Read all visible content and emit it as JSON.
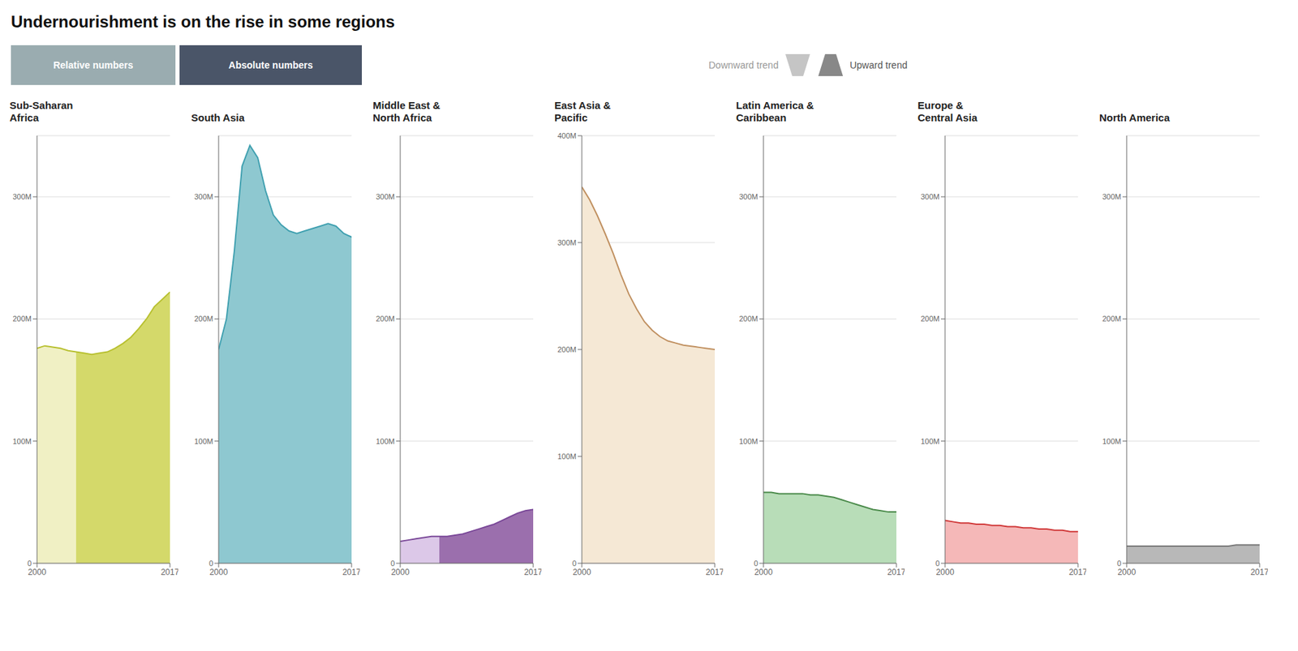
{
  "title": "Undernourishment is on the rise in some regions",
  "annotations": [
    {
      "text": "Relative numbers",
      "color": "#9aacb0"
    },
    {
      "text": "Absolute numbers",
      "color": "#4a5568"
    },
    {
      "text": "Downward trend",
      "color": "#c5c5c5"
    },
    {
      "text": "Upward trend",
      "color": "#888888"
    }
  ],
  "chart_data": [
    {
      "type": "area",
      "title": "Sub-Saharan\nAfrica",
      "x": [
        2000,
        2001,
        2002,
        2003,
        2004,
        2005,
        2006,
        2007,
        2008,
        2009,
        2010,
        2011,
        2012,
        2013,
        2014,
        2015,
        2016,
        2017
      ],
      "series": [
        {
          "type": "area",
          "color": "#f0f0c4",
          "values": [
            176,
            178,
            177,
            176,
            174,
            173,
            null,
            null,
            null,
            null,
            null,
            null,
            null,
            null,
            null,
            null,
            null,
            null
          ]
        },
        {
          "type": "area",
          "color": "#d4d96a",
          "values": [
            null,
            null,
            null,
            null,
            null,
            173,
            172,
            171,
            172,
            173,
            176,
            180,
            185,
            192,
            200,
            210,
            216,
            222
          ]
        },
        {
          "type": "line",
          "color": "#b8c030",
          "values": [
            176,
            178,
            177,
            176,
            174,
            173,
            172,
            171,
            172,
            173,
            176,
            180,
            185,
            192,
            200,
            210,
            216,
            222
          ]
        }
      ],
      "xlim": [
        2000,
        2017
      ],
      "xticks": [
        2000,
        2017
      ],
      "ylim": [
        0,
        350
      ],
      "yticks": [
        0,
        {
          "value": 100,
          "label": "100M"
        },
        {
          "value": 200,
          "label": "200M"
        },
        {
          "value": 300,
          "label": "300M"
        }
      ],
      "grid": true
    },
    {
      "type": "area",
      "title": "South Asia",
      "x": [
        2000,
        2001,
        2002,
        2003,
        2004,
        2005,
        2006,
        2007,
        2008,
        2009,
        2010,
        2011,
        2012,
        2013,
        2014,
        2015,
        2016,
        2017
      ],
      "series": [
        {
          "type": "area",
          "color": "#8ec8d0",
          "values": [
            175,
            200,
            255,
            325,
            342,
            332,
            305,
            285,
            277,
            272,
            270,
            272,
            274,
            276,
            278,
            276,
            270,
            267
          ]
        },
        {
          "type": "line",
          "color": "#40a0b0",
          "values": [
            175,
            200,
            255,
            325,
            342,
            332,
            305,
            285,
            277,
            272,
            270,
            272,
            274,
            276,
            278,
            276,
            270,
            267
          ]
        }
      ],
      "xlim": [
        2000,
        2017
      ],
      "xticks": [
        2000,
        2017
      ],
      "ylim": [
        0,
        350
      ],
      "yticks": [
        0,
        {
          "value": 100,
          "label": "100M"
        },
        {
          "value": 200,
          "label": "200M"
        },
        {
          "value": 300,
          "label": "300M"
        }
      ],
      "grid": true
    },
    {
      "type": "area",
      "title": "Middle East &\nNorth Africa",
      "x": [
        2000,
        2001,
        2002,
        2003,
        2004,
        2005,
        2006,
        2007,
        2008,
        2009,
        2010,
        2011,
        2012,
        2013,
        2014,
        2015,
        2016,
        2017
      ],
      "series": [
        {
          "type": "area",
          "color": "#dcc8e8",
          "values": [
            18,
            19,
            20,
            21,
            22,
            22,
            null,
            null,
            null,
            null,
            null,
            null,
            null,
            null,
            null,
            null,
            null,
            null
          ]
        },
        {
          "type": "area",
          "color": "#9b6fad",
          "values": [
            null,
            null,
            null,
            null,
            null,
            22,
            22,
            23,
            24,
            26,
            28,
            30,
            32,
            35,
            38,
            41,
            43,
            44
          ]
        },
        {
          "type": "line",
          "color": "#7a4898",
          "values": [
            18,
            19,
            20,
            21,
            22,
            22,
            22,
            23,
            24,
            26,
            28,
            30,
            32,
            35,
            38,
            41,
            43,
            44
          ]
        }
      ],
      "xlim": [
        2000,
        2017
      ],
      "xticks": [
        2000,
        2017
      ],
      "ylim": [
        0,
        350
      ],
      "yticks": [
        0,
        {
          "value": 100,
          "label": "100M"
        },
        {
          "value": 200,
          "label": "200M"
        },
        {
          "value": 300,
          "label": "300M"
        }
      ],
      "grid": true
    },
    {
      "type": "area",
      "title": "East Asia &\nPacific",
      "x": [
        2000,
        2001,
        2002,
        2003,
        2004,
        2005,
        2006,
        2007,
        2008,
        2009,
        2010,
        2011,
        2012,
        2013,
        2014,
        2015,
        2016,
        2017
      ],
      "series": [
        {
          "type": "area",
          "color": "#f5e8d5",
          "values": [
            352,
            340,
            325,
            308,
            290,
            270,
            252,
            238,
            226,
            218,
            212,
            208,
            206,
            204,
            203,
            202,
            201,
            200
          ]
        },
        {
          "type": "line",
          "color": "#c09060",
          "values": [
            352,
            340,
            325,
            308,
            290,
            270,
            252,
            238,
            226,
            218,
            212,
            208,
            206,
            204,
            203,
            202,
            201,
            200
          ]
        }
      ],
      "xlim": [
        2000,
        2017
      ],
      "xticks": [
        2000,
        2017
      ],
      "ylim": [
        0,
        400
      ],
      "yticks": [
        0,
        {
          "value": 100,
          "label": "100M"
        },
        {
          "value": 200,
          "label": "200M"
        },
        {
          "value": 300,
          "label": "300M"
        },
        {
          "value": 400,
          "label": "400M"
        }
      ],
      "grid": true
    },
    {
      "type": "area",
      "title": "Latin America &\nCaribbean",
      "x": [
        2000,
        2001,
        2002,
        2003,
        2004,
        2005,
        2006,
        2007,
        2008,
        2009,
        2010,
        2011,
        2012,
        2013,
        2014,
        2015,
        2016,
        2017
      ],
      "series": [
        {
          "type": "area",
          "color": "#b8ddb8",
          "values": [
            58,
            58,
            57,
            57,
            57,
            57,
            56,
            56,
            55,
            54,
            52,
            50,
            48,
            46,
            44,
            43,
            42,
            42
          ]
        },
        {
          "type": "line",
          "color": "#4a8a4a",
          "values": [
            58,
            58,
            57,
            57,
            57,
            57,
            56,
            56,
            55,
            54,
            52,
            50,
            48,
            46,
            44,
            43,
            42,
            42
          ]
        }
      ],
      "xlim": [
        2000,
        2017
      ],
      "xticks": [
        2000,
        2017
      ],
      "ylim": [
        0,
        350
      ],
      "yticks": [
        0,
        {
          "value": 100,
          "label": "100M"
        },
        {
          "value": 200,
          "label": "200M"
        },
        {
          "value": 300,
          "label": "300M"
        }
      ],
      "grid": true
    },
    {
      "type": "area",
      "title": "Europe &\nCentral Asia",
      "x": [
        2000,
        2001,
        2002,
        2003,
        2004,
        2005,
        2006,
        2007,
        2008,
        2009,
        2010,
        2011,
        2012,
        2013,
        2014,
        2015,
        2016,
        2017
      ],
      "series": [
        {
          "type": "area",
          "color": "#f5b8b8",
          "values": [
            35,
            34,
            33,
            33,
            32,
            32,
            31,
            31,
            30,
            30,
            29,
            29,
            28,
            28,
            27,
            27,
            26,
            26
          ]
        },
        {
          "type": "line",
          "color": "#d03838",
          "values": [
            35,
            34,
            33,
            33,
            32,
            32,
            31,
            31,
            30,
            30,
            29,
            29,
            28,
            28,
            27,
            27,
            26,
            26
          ]
        }
      ],
      "xlim": [
        2000,
        2017
      ],
      "xticks": [
        2000,
        2017
      ],
      "ylim": [
        0,
        350
      ],
      "yticks": [
        0,
        {
          "value": 100,
          "label": "100M"
        },
        {
          "value": 200,
          "label": "200M"
        },
        {
          "value": 300,
          "label": "300M"
        }
      ],
      "grid": true
    },
    {
      "type": "area",
      "title": "North America",
      "x": [
        2000,
        2001,
        2002,
        2003,
        2004,
        2005,
        2006,
        2007,
        2008,
        2009,
        2010,
        2011,
        2012,
        2013,
        2014,
        2015,
        2016,
        2017
      ],
      "series": [
        {
          "type": "area",
          "color": "#b8b8b8",
          "values": [
            14,
            14,
            14,
            14,
            14,
            14,
            14,
            14,
            14,
            14,
            14,
            14,
            14,
            14,
            15,
            15,
            15,
            15
          ]
        },
        {
          "type": "line",
          "color": "#787878",
          "values": [
            14,
            14,
            14,
            14,
            14,
            14,
            14,
            14,
            14,
            14,
            14,
            14,
            14,
            14,
            15,
            15,
            15,
            15
          ]
        }
      ],
      "xlim": [
        2000,
        2017
      ],
      "xticks": [
        2000,
        2017
      ],
      "ylim": [
        0,
        350
      ],
      "yticks": [
        0,
        {
          "value": 100,
          "label": "100M"
        },
        {
          "value": 200,
          "label": "200M"
        },
        {
          "value": 300,
          "label": "300M"
        }
      ],
      "grid": true
    }
  ]
}
